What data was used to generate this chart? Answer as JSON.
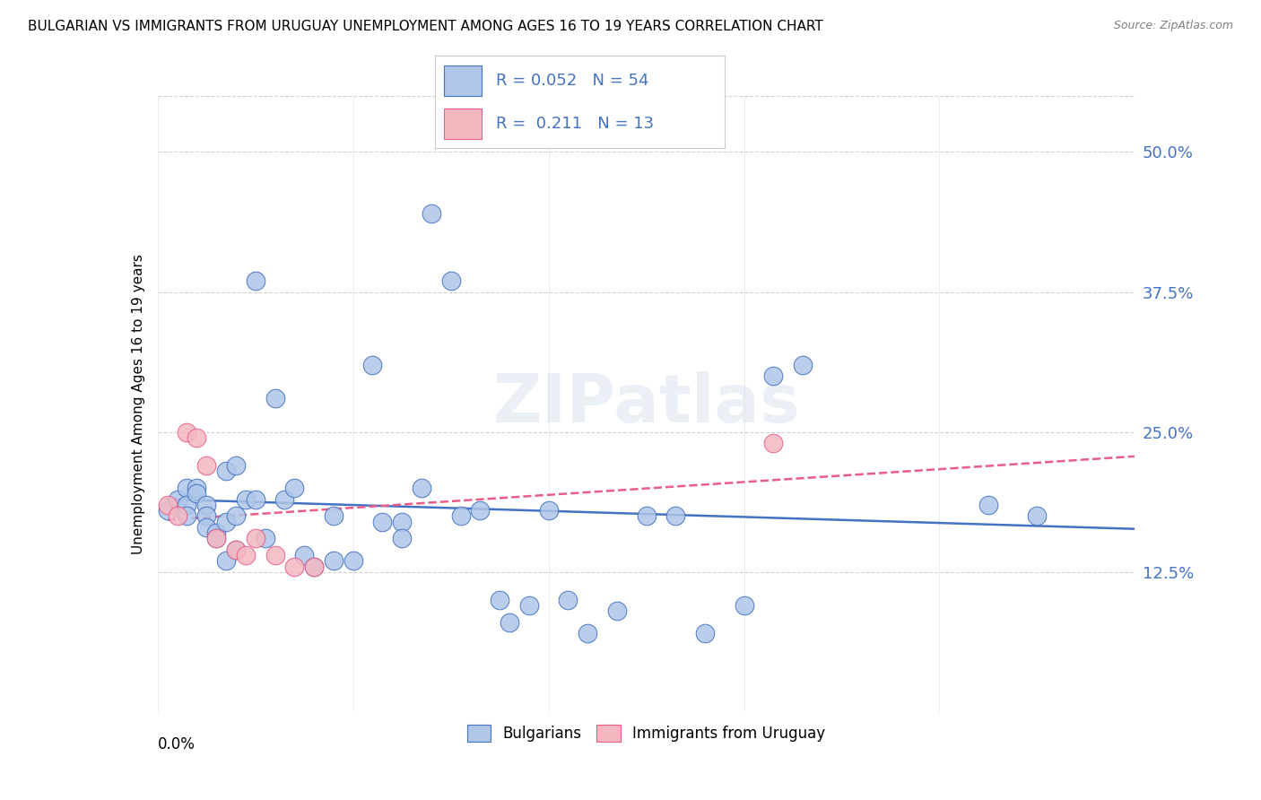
{
  "title": "BULGARIAN VS IMMIGRANTS FROM URUGUAY UNEMPLOYMENT AMONG AGES 16 TO 19 YEARS CORRELATION CHART",
  "source": "Source: ZipAtlas.com",
  "ylabel": "Unemployment Among Ages 16 to 19 years",
  "ylabel_right_ticks": [
    "50.0%",
    "37.5%",
    "25.0%",
    "12.5%"
  ],
  "ylabel_right_vals": [
    0.5,
    0.375,
    0.25,
    0.125
  ],
  "xlim": [
    0.0,
    0.1
  ],
  "ylim": [
    0.0,
    0.55
  ],
  "r_bulgarian": 0.052,
  "n_bulgarian": 54,
  "r_uruguay": 0.211,
  "n_uruguay": 13,
  "color_bulgarian": "#aec6e8",
  "color_uruguay": "#f4b8c1",
  "color_trend_bulgarian": "#4472c4",
  "color_trend_uruguay": "#e85d8a",
  "bg_color": "#ffffff",
  "watermark": "ZIPatlas",
  "bulgarian_x": [
    0.001,
    0.002,
    0.003,
    0.003,
    0.003,
    0.004,
    0.004,
    0.005,
    0.005,
    0.005,
    0.006,
    0.006,
    0.007,
    0.007,
    0.007,
    0.008,
    0.008,
    0.008,
    0.009,
    0.01,
    0.01,
    0.011,
    0.012,
    0.013,
    0.014,
    0.015,
    0.016,
    0.018,
    0.018,
    0.02,
    0.022,
    0.023,
    0.025,
    0.025,
    0.027,
    0.028,
    0.03,
    0.031,
    0.033,
    0.035,
    0.036,
    0.038,
    0.04,
    0.042,
    0.044,
    0.047,
    0.05,
    0.053,
    0.056,
    0.06,
    0.063,
    0.066,
    0.085,
    0.09
  ],
  "bulgarian_y": [
    0.18,
    0.19,
    0.2,
    0.185,
    0.175,
    0.2,
    0.195,
    0.185,
    0.175,
    0.165,
    0.16,
    0.155,
    0.215,
    0.17,
    0.135,
    0.22,
    0.175,
    0.145,
    0.19,
    0.385,
    0.19,
    0.155,
    0.28,
    0.19,
    0.2,
    0.14,
    0.13,
    0.175,
    0.135,
    0.135,
    0.31,
    0.17,
    0.17,
    0.155,
    0.2,
    0.445,
    0.385,
    0.175,
    0.18,
    0.1,
    0.08,
    0.095,
    0.18,
    0.1,
    0.07,
    0.09,
    0.175,
    0.175,
    0.07,
    0.095,
    0.3,
    0.31,
    0.185,
    0.175
  ],
  "uruguay_x": [
    0.001,
    0.002,
    0.003,
    0.004,
    0.005,
    0.006,
    0.008,
    0.009,
    0.01,
    0.012,
    0.014,
    0.016,
    0.063
  ],
  "uruguay_y": [
    0.185,
    0.175,
    0.25,
    0.245,
    0.22,
    0.155,
    0.145,
    0.14,
    0.155,
    0.14,
    0.13,
    0.13,
    0.24
  ],
  "grid_color": "#cccccc"
}
